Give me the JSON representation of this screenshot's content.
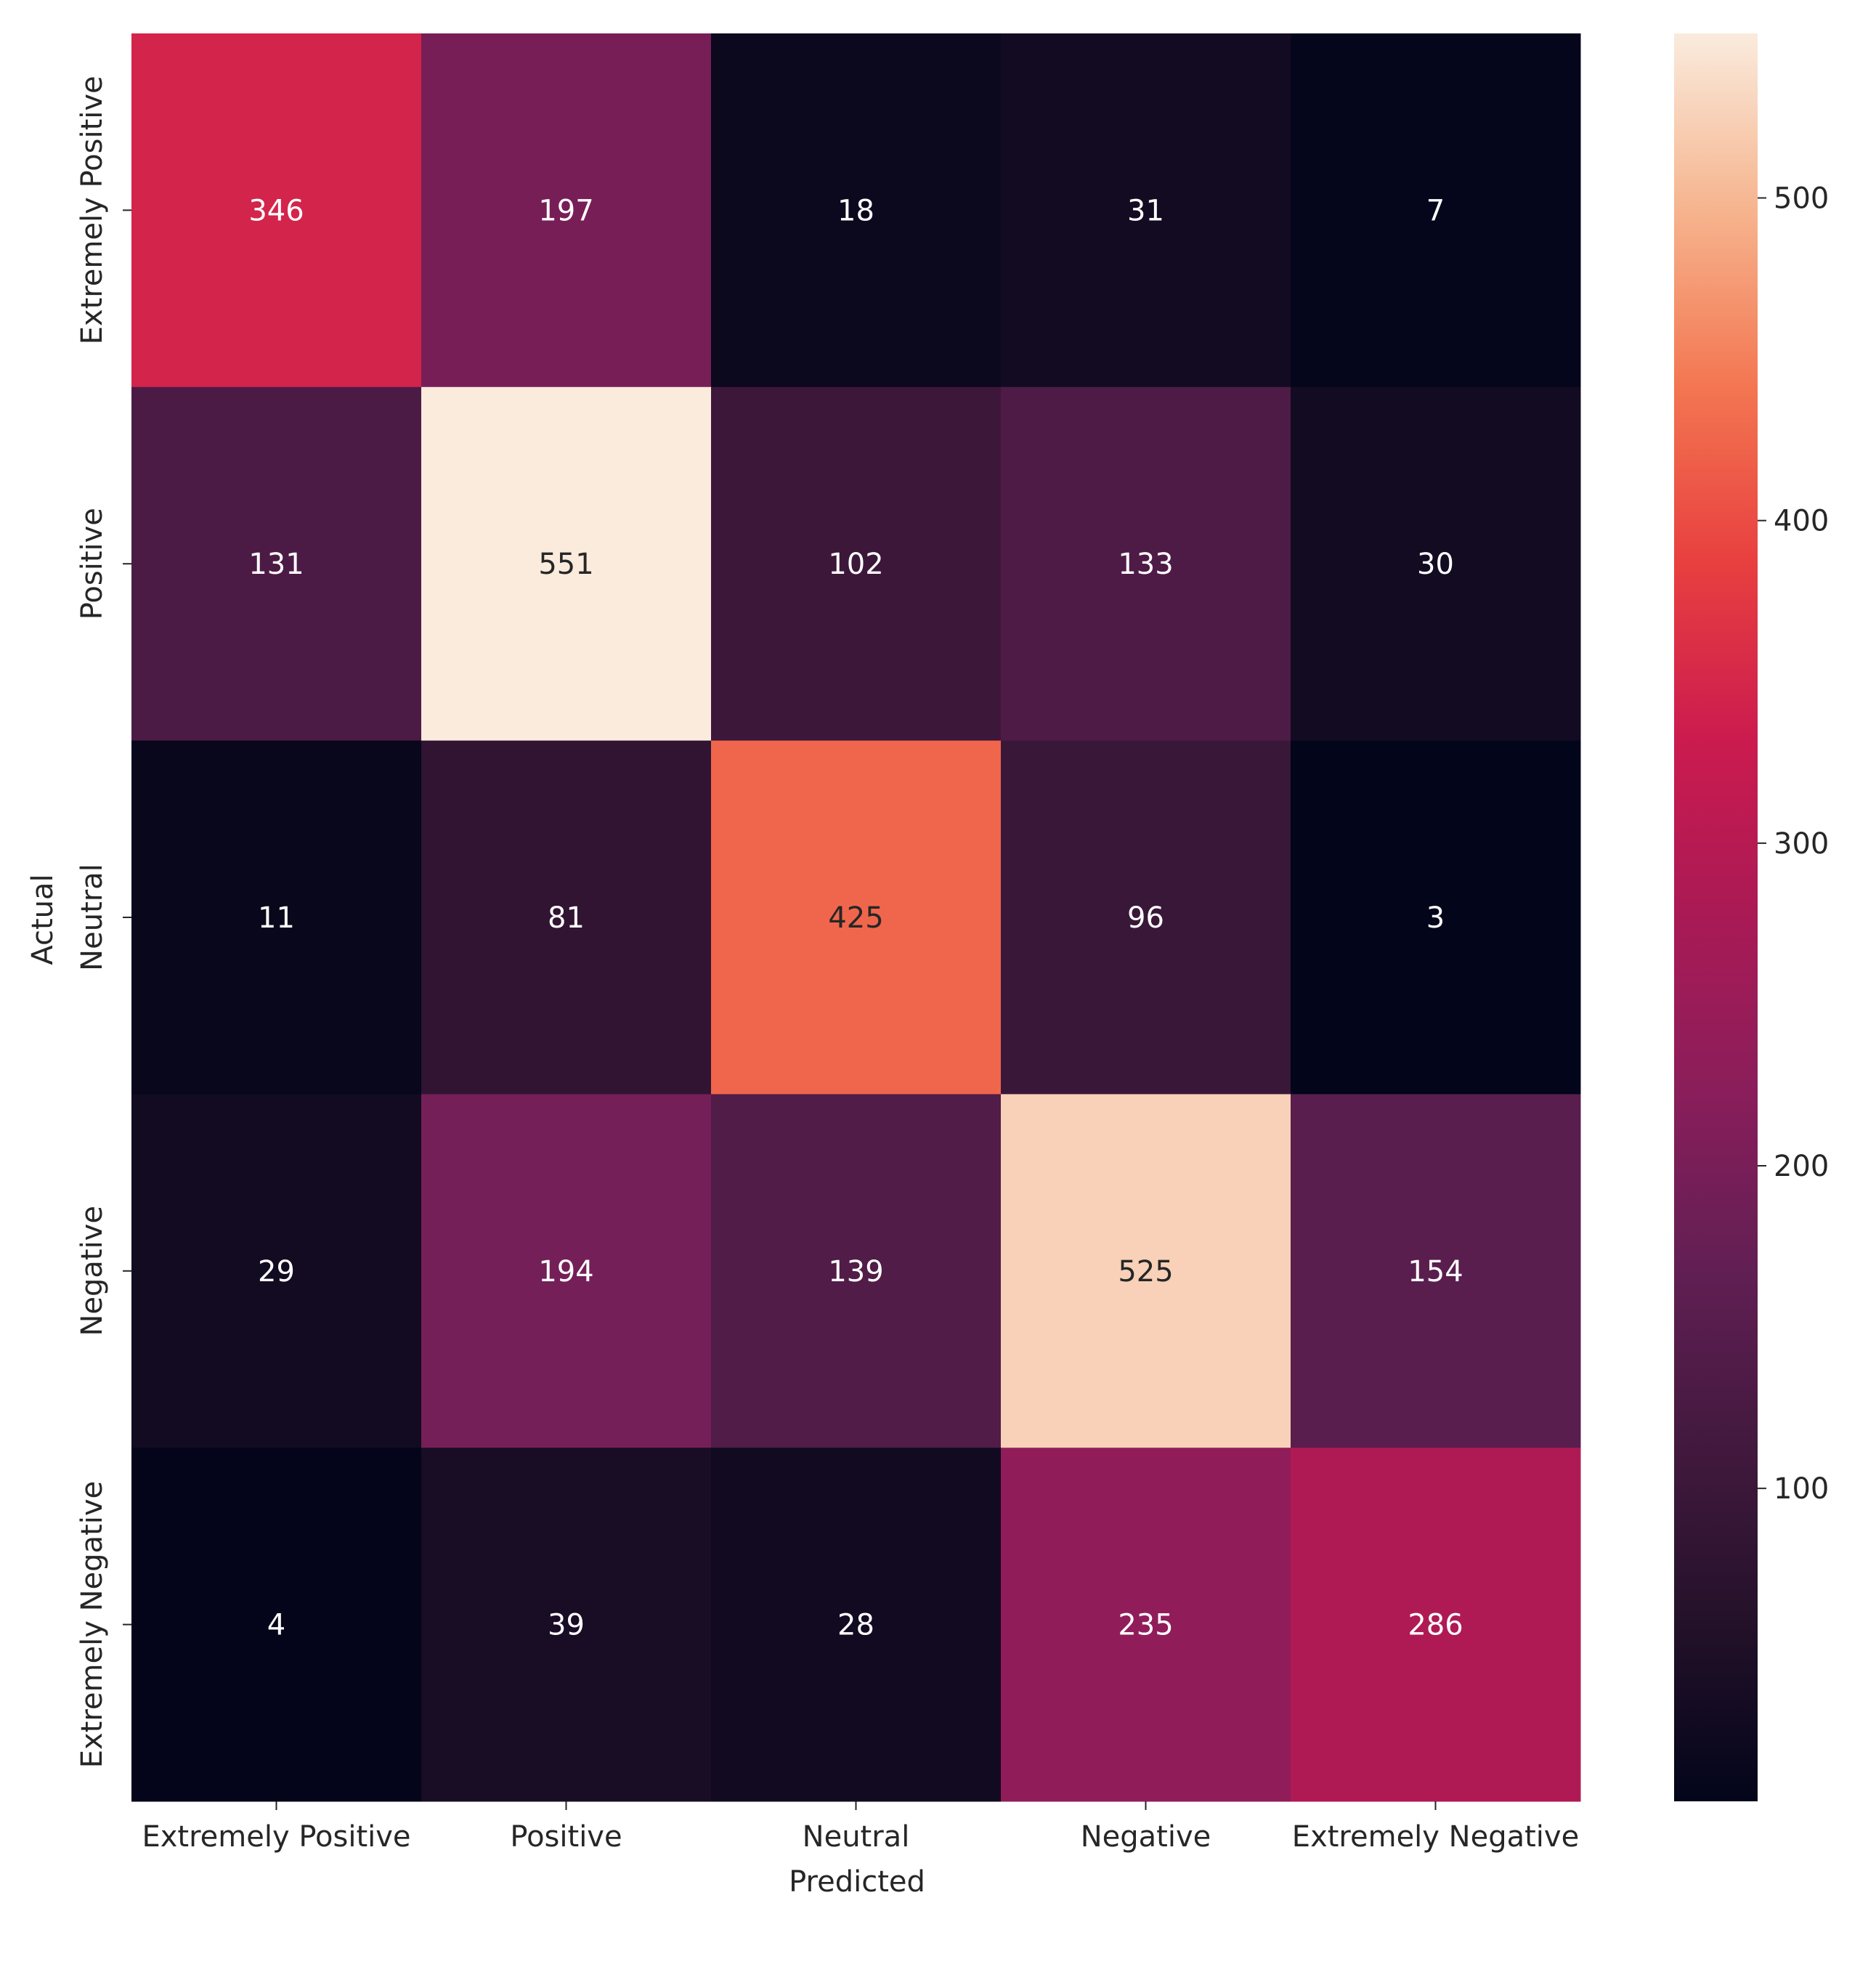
{
  "chart_data": {
    "type": "heatmap",
    "title": "",
    "xlabel": "Predicted",
    "ylabel": "Actual",
    "x_categories": [
      "Extremely Positive",
      "Positive",
      "Neutral",
      "Negative",
      "Extremely Negative"
    ],
    "y_categories": [
      "Extremely Positive",
      "Positive",
      "Neutral",
      "Negative",
      "Extremely Negative"
    ],
    "values": [
      [
        346,
        197,
        18,
        31,
        7
      ],
      [
        131,
        551,
        102,
        133,
        30
      ],
      [
        11,
        81,
        425,
        96,
        3
      ],
      [
        29,
        194,
        139,
        525,
        154
      ],
      [
        4,
        39,
        28,
        235,
        286
      ]
    ],
    "colorbar": {
      "colormap": "rocket",
      "vmin": 3,
      "vmax": 551,
      "ticks": [
        100,
        200,
        300,
        400,
        500
      ],
      "tick_labels": [
        "100",
        "200",
        "300",
        "400",
        "500"
      ]
    }
  }
}
